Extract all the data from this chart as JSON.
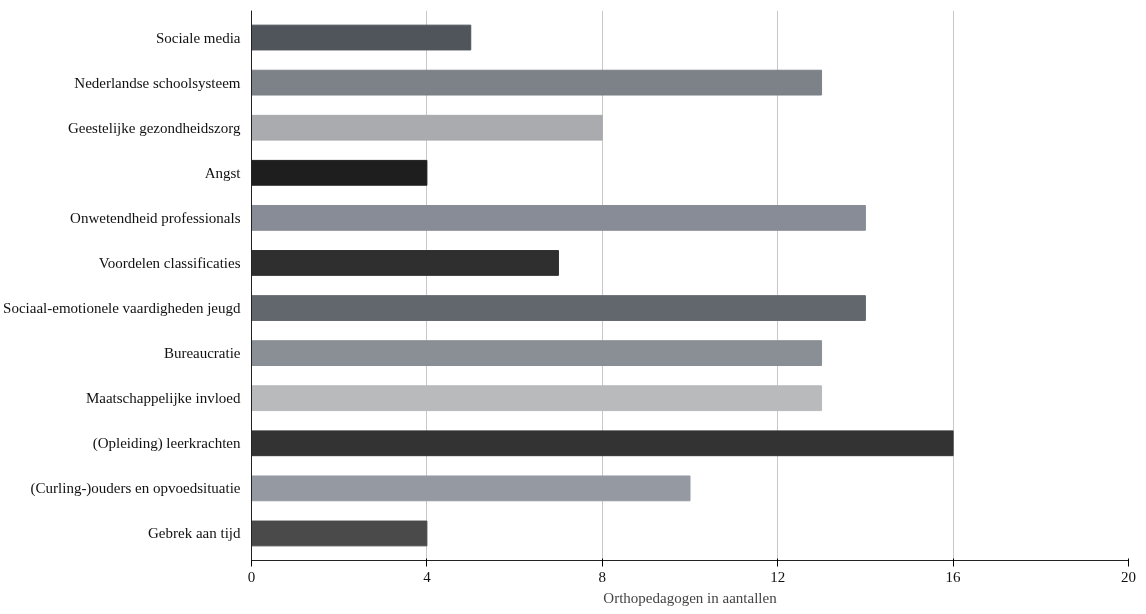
{
  "chart_data": {
    "type": "bar",
    "orientation": "horizontal",
    "xlabel": "Orthopedagogen in aantallen",
    "categories": [
      "Sociale media",
      "Nederlandse schoolsysteem",
      "Geestelijke gezondheidszorg",
      "Angst",
      "Onwetendheid professionals",
      "Voordelen classificaties",
      "Sociaal-emotionele vaardigheden jeugd",
      "Bureaucratie",
      "Maatschappelijke invloed",
      "(Opleiding) leerkrachten",
      "(Curling-)ouders en opvoedsituatie",
      "Gebrek aan tijd"
    ],
    "values": [
      5,
      13,
      8,
      4,
      14,
      7,
      14,
      13,
      13,
      16,
      10,
      4
    ],
    "colors": [
      "#50555b",
      "#7d8288",
      "#a9abae",
      "#1e1e1e",
      "#878c96",
      "#2f2f2f",
      "#62676d",
      "#8a8f95",
      "#b8babc",
      "#333333",
      "#959aa2",
      "#4a4a4a"
    ],
    "xlim": [
      0,
      20
    ],
    "xticks": [
      0,
      4,
      8,
      12,
      16,
      20
    ],
    "grid": "x"
  }
}
